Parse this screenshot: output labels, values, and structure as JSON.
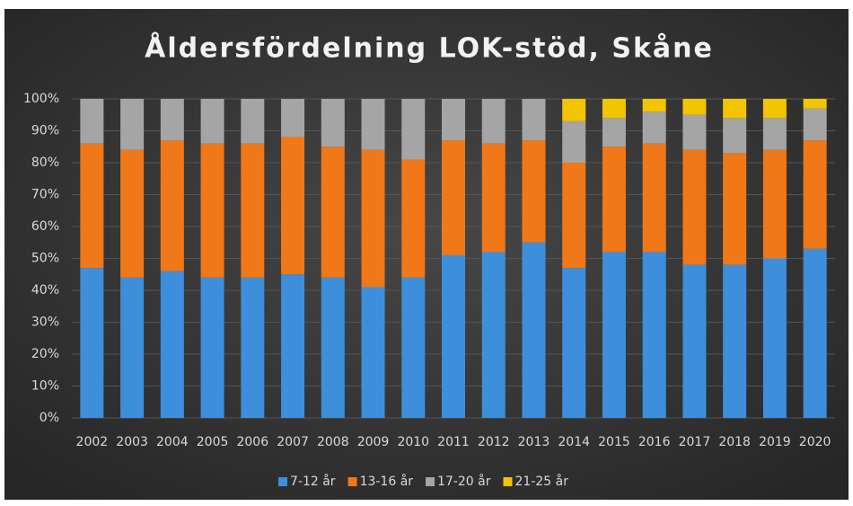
{
  "chart_data": {
    "type": "stacked-bar",
    "title": "Åldersfördelning LOK-stöd, Skåne",
    "categories": [
      "2002",
      "2003",
      "2004",
      "2005",
      "2006",
      "2007",
      "2008",
      "2009",
      "2010",
      "2011",
      "2012",
      "2013",
      "2014",
      "2015",
      "2016",
      "2017",
      "2018",
      "2019",
      "2020"
    ],
    "series": [
      {
        "name": "7-12 år",
        "color": "#3d8fdc",
        "values": [
          47,
          44,
          46,
          44,
          44,
          45,
          44,
          41,
          44,
          51,
          52,
          55,
          47,
          52,
          52,
          48,
          48,
          50,
          53
        ]
      },
      {
        "name": "13-16 år",
        "color": "#f07818",
        "values": [
          39,
          40,
          41,
          42,
          42,
          43,
          41,
          43,
          37,
          36,
          34,
          32,
          33,
          33,
          34,
          36,
          35,
          34,
          34
        ]
      },
      {
        "name": "17-20 år",
        "color": "#a5a5a5",
        "values": [
          14,
          16,
          13,
          14,
          14,
          12,
          15,
          16,
          19,
          13,
          14,
          13,
          13,
          9,
          10,
          11,
          11,
          10,
          10
        ]
      },
      {
        "name": "21-25 år",
        "color": "#f2c500",
        "values": [
          0,
          0,
          0,
          0,
          0,
          0,
          0,
          0,
          0,
          0,
          0,
          0,
          7,
          6,
          4,
          5,
          6,
          6,
          3
        ]
      }
    ],
    "ylim": [
      0,
      100
    ],
    "yticks": [
      {
        "value": 0,
        "label": "0%"
      },
      {
        "value": 10,
        "label": "10%"
      },
      {
        "value": 20,
        "label": "20%"
      },
      {
        "value": 30,
        "label": "30%"
      },
      {
        "value": 40,
        "label": "40%"
      },
      {
        "value": 50,
        "label": "50%"
      },
      {
        "value": 60,
        "label": "60%"
      },
      {
        "value": 70,
        "label": "70%"
      },
      {
        "value": 80,
        "label": "80%"
      },
      {
        "value": 90,
        "label": "90%"
      },
      {
        "value": 100,
        "label": "100%"
      }
    ],
    "grid": true,
    "legend": "bottom"
  }
}
